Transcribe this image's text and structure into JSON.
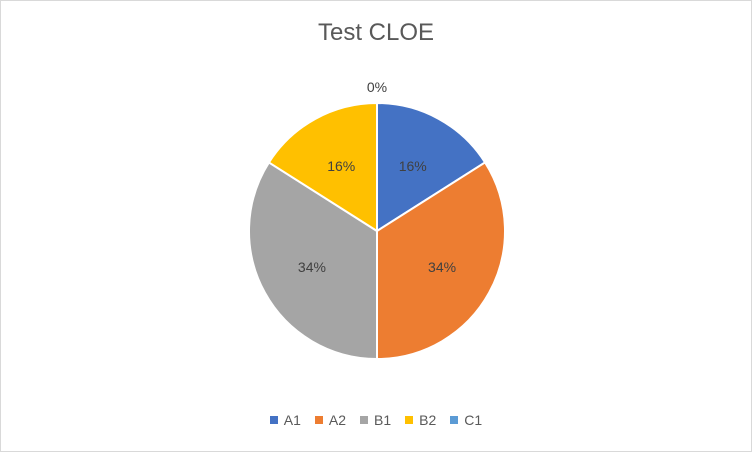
{
  "chart_data": {
    "type": "pie",
    "title": "Test CLOE",
    "categories": [
      "A1",
      "A2",
      "B1",
      "B2",
      "C1"
    ],
    "values": [
      16,
      34,
      34,
      16,
      0
    ],
    "labels": [
      "16%",
      "34%",
      "34%",
      "16%",
      "0%"
    ],
    "colors": [
      "#4472c4",
      "#ed7d31",
      "#a5a5a5",
      "#ffc000",
      "#5b9bd5"
    ],
    "legend_position": "bottom"
  }
}
